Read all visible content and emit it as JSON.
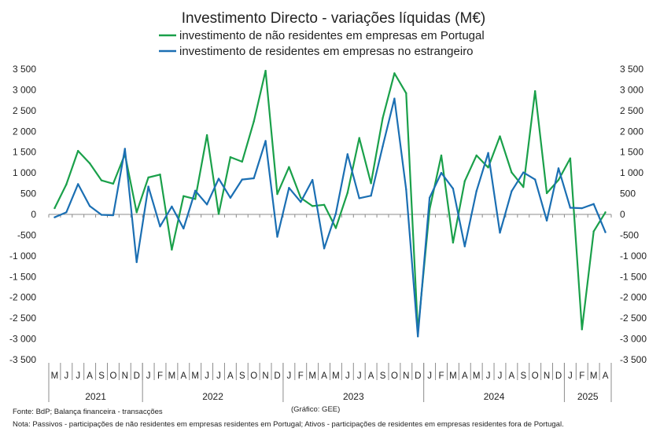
{
  "chart_data": {
    "type": "line",
    "title": "Investimento Directo - variações líquidas (M€)",
    "xlabel": "",
    "ylabel": "",
    "ylim": [
      -3500,
      3500
    ],
    "y_tick_labels": [
      "3 500",
      "3 000",
      "2 500",
      "2 000",
      "1 500",
      "1 000",
      "500",
      "0",
      "-500",
      "-1 000",
      "-1 500",
      "-2 000",
      "-2 500",
      "-3 000",
      "-3 500"
    ],
    "y_ticks": [
      3500,
      3000,
      2500,
      2000,
      1500,
      1000,
      500,
      0,
      -500,
      -1000,
      -1500,
      -2000,
      -2500,
      -3000,
      -3500
    ],
    "grid": false,
    "legend_position": "top",
    "categories": [
      "M",
      "J",
      "J",
      "A",
      "S",
      "O",
      "N",
      "D",
      "J",
      "F",
      "M",
      "A",
      "M",
      "J",
      "J",
      "A",
      "S",
      "O",
      "N",
      "D",
      "J",
      "F",
      "M",
      "A",
      "M",
      "J",
      "J",
      "A",
      "S",
      "O",
      "N",
      "D",
      "J",
      "F",
      "M",
      "A",
      "M",
      "J",
      "J",
      "A",
      "S",
      "O",
      "N",
      "D",
      "J",
      "F",
      "M",
      "A"
    ],
    "years": [
      {
        "label": "2021",
        "start": 0,
        "count": 8
      },
      {
        "label": "2022",
        "start": 8,
        "count": 12
      },
      {
        "label": "2023",
        "start": 20,
        "count": 12
      },
      {
        "label": "2024",
        "start": 32,
        "count": 12
      },
      {
        "label": "2025",
        "start": 44,
        "count": 4
      }
    ],
    "series": [
      {
        "name": "investimento de não residentes em empresas em Portugal",
        "color": "#1aa04a",
        "values": [
          150,
          720,
          1530,
          1230,
          820,
          740,
          1450,
          50,
          890,
          960,
          -850,
          440,
          370,
          1910,
          10,
          1380,
          1270,
          2240,
          3460,
          490,
          1140,
          400,
          200,
          230,
          -330,
          520,
          1840,
          750,
          2320,
          3400,
          2920,
          -2820,
          120,
          1420,
          -680,
          800,
          1420,
          1130,
          1880,
          1010,
          660,
          2970,
          510,
          830,
          1350,
          -2770,
          -410,
          50
        ]
      },
      {
        "name": "investimento de residentes em empresas no estrangeiro",
        "color": "#1b6fb3",
        "values": [
          -70,
          50,
          730,
          200,
          -10,
          -20,
          1580,
          -1150,
          670,
          -290,
          190,
          -340,
          570,
          240,
          860,
          400,
          840,
          870,
          1770,
          -540,
          640,
          300,
          830,
          -820,
          20,
          1450,
          390,
          450,
          1640,
          2790,
          600,
          -2940,
          400,
          1000,
          620,
          -770,
          560,
          1480,
          -440,
          560,
          1010,
          840,
          -150,
          1110,
          160,
          150,
          250,
          -430
        ]
      }
    ]
  },
  "footer": {
    "source": "Fonte: BdP; Balança financeira - transacções",
    "credit": "(Gráfico: GEE)",
    "note": "Nota: Passivos - participações de não residentes em empresas residentes em Portugal; Ativos - participações de residentes em empresas residentes fora de Portugal."
  }
}
